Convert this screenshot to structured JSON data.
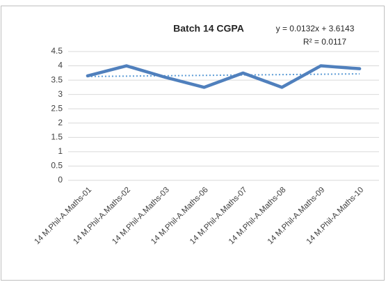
{
  "chart_data": {
    "type": "line",
    "title": "Batch 14 CGPA",
    "categories": [
      "14 M.Phil-A.Maths-01",
      "14 M.Phil-A.Maths-02",
      "14 M.Phil-A.Maths-03",
      "14 M.Phil-A.Maths-06",
      "14 M.Phil-A.Maths-07",
      "14 M.Phil-A.Maths-08",
      "14 M.Phil-A.Maths-09",
      "14 M.Phil-A.Maths-10"
    ],
    "series": [
      {
        "name": "CGPA",
        "color": "#5080bd",
        "values": [
          3.65,
          4.0,
          3.6,
          3.25,
          3.75,
          3.25,
          4.0,
          3.9
        ]
      }
    ],
    "trendline": {
      "slope": 0.0132,
      "intercept": 3.6143,
      "label": "y = 0.0132x + 3.6143",
      "r2_label": "R² = 0.0117",
      "color": "#5b9bd5"
    },
    "ylim": [
      0,
      4.5
    ],
    "yticks": [
      0,
      0.5,
      1,
      1.5,
      2,
      2.5,
      3,
      3.5,
      4,
      4.5
    ],
    "grid": true
  }
}
